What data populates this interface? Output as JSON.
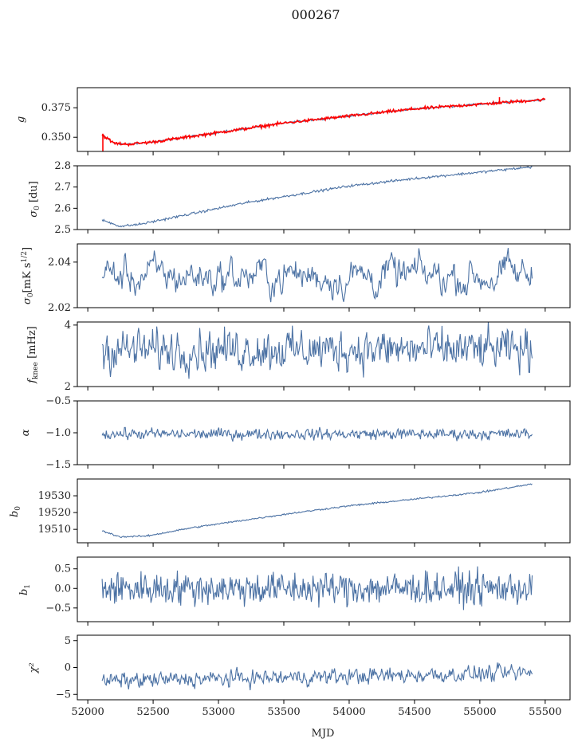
{
  "title": "000267",
  "xlabel": "MJD",
  "colors": {
    "series": "#4c72a4",
    "overlay": "#ff0000",
    "axis": "#000000"
  },
  "chart_data": [
    {
      "type": "line",
      "name": "g",
      "ylabel": "g",
      "xlim": [
        51920,
        55690
      ],
      "ylim": [
        0.338,
        0.392
      ],
      "yticks": [
        0.35,
        0.375
      ],
      "ytick_labels": [
        "0.350",
        "0.375"
      ],
      "xticks": [
        52000,
        52500,
        53000,
        53500,
        54000,
        54500,
        55000,
        55500
      ],
      "series": [
        {
          "name": "g",
          "color": "#4c72a4",
          "shape": "trend",
          "points": [
            [
              52110,
              0.352
            ],
            [
              52200,
              0.345
            ],
            [
              52300,
              0.344
            ],
            [
              52500,
              0.346
            ],
            [
              53000,
              0.354
            ],
            [
              53500,
              0.362
            ],
            [
              54000,
              0.368
            ],
            [
              54500,
              0.374
            ],
            [
              55000,
              0.378
            ],
            [
              55500,
              0.382
            ]
          ],
          "noise": 0.0006
        },
        {
          "name": "g (red)",
          "color": "#ff0000",
          "shape": "trend",
          "points": [
            [
              52110,
              0.352
            ],
            [
              52200,
              0.345
            ],
            [
              52300,
              0.344
            ],
            [
              52500,
              0.346
            ],
            [
              53000,
              0.354
            ],
            [
              53500,
              0.362
            ],
            [
              54000,
              0.368
            ],
            [
              54500,
              0.374
            ],
            [
              55000,
              0.378
            ],
            [
              55500,
              0.382
            ]
          ],
          "noise": 0.0009
        }
      ]
    },
    {
      "type": "line",
      "name": "sigma0_du",
      "xlim": [
        51920,
        55690
      ],
      "ylim": [
        2.5,
        2.8
      ],
      "yticks": [
        2.5,
        2.6,
        2.7,
        2.8
      ],
      "ytick_labels": [
        "2.5",
        "2.6",
        "2.7",
        "2.8"
      ],
      "xticks": [
        52000,
        52500,
        53000,
        53500,
        54000,
        54500,
        55000,
        55500
      ],
      "series": [
        {
          "name": "sigma0",
          "color": "#4c72a4",
          "shape": "trend",
          "points": [
            [
              52110,
              2.545
            ],
            [
              52250,
              2.515
            ],
            [
              52400,
              2.525
            ],
            [
              52800,
              2.575
            ],
            [
              53200,
              2.625
            ],
            [
              53600,
              2.665
            ],
            [
              54000,
              2.705
            ],
            [
              54500,
              2.74
            ],
            [
              55000,
              2.77
            ],
            [
              55400,
              2.795
            ]
          ],
          "noise": 0.004
        }
      ]
    },
    {
      "type": "line",
      "name": "sigma0_mks",
      "xlim": [
        51920,
        55690
      ],
      "ylim": [
        2.02,
        2.048
      ],
      "yticks": [
        2.02,
        2.04
      ],
      "ytick_labels": [
        "2.02",
        "2.04"
      ],
      "xticks": [
        52000,
        52500,
        53000,
        53500,
        54000,
        54500,
        55000,
        55500
      ],
      "series": [
        {
          "name": "sigma0_mks",
          "color": "#4c72a4",
          "shape": "noisy",
          "mean": 2.034,
          "amp": 0.006,
          "smooth": 0.75,
          "x_range": [
            52110,
            55400
          ]
        }
      ]
    },
    {
      "type": "line",
      "name": "fknee",
      "xlim": [
        51920,
        55690
      ],
      "ylim": [
        2,
        4.1
      ],
      "yticks": [
        2,
        4
      ],
      "ytick_labels": [
        "2",
        "4"
      ],
      "xticks": [
        52000,
        52500,
        53000,
        53500,
        54000,
        54500,
        55000,
        55500
      ],
      "series": [
        {
          "name": "fknee",
          "color": "#4c72a4",
          "shape": "noisy",
          "mean": 3.2,
          "amp": 0.45,
          "smooth": 0.3,
          "x_range": [
            52110,
            55400
          ]
        }
      ]
    },
    {
      "type": "line",
      "name": "alpha",
      "ylabel": "α",
      "xlim": [
        51920,
        55690
      ],
      "ylim": [
        -1.5,
        -0.5
      ],
      "yticks": [
        -1.5,
        -1.0,
        -0.5
      ],
      "ytick_labels": [
        "−1.5",
        "−1.0",
        "−0.5"
      ],
      "xticks": [
        52000,
        52500,
        53000,
        53500,
        54000,
        54500,
        55000,
        55500
      ],
      "series": [
        {
          "name": "alpha",
          "color": "#4c72a4",
          "shape": "noisy",
          "mean": -1.02,
          "amp": 0.06,
          "smooth": 0.2,
          "x_range": [
            52110,
            55400
          ]
        }
      ]
    },
    {
      "type": "line",
      "name": "b0",
      "xlim": [
        51920,
        55690
      ],
      "ylim": [
        19502,
        19540
      ],
      "yticks": [
        19510,
        19520,
        19530
      ],
      "ytick_labels": [
        "19510",
        "19520",
        "19530"
      ],
      "xticks": [
        52000,
        52500,
        53000,
        53500,
        54000,
        54500,
        55000,
        55500
      ],
      "series": [
        {
          "name": "b0",
          "color": "#4c72a4",
          "shape": "trend",
          "points": [
            [
              52110,
              19509
            ],
            [
              52250,
              19505.5
            ],
            [
              52450,
              19506
            ],
            [
              52800,
              19511
            ],
            [
              53200,
              19515.5
            ],
            [
              53600,
              19520
            ],
            [
              54000,
              19524
            ],
            [
              54500,
              19528
            ],
            [
              55000,
              19532
            ],
            [
              55400,
              19537
            ]
          ],
          "noise": 0.35
        }
      ]
    },
    {
      "type": "line",
      "name": "b1",
      "xlim": [
        51920,
        55690
      ],
      "ylim": [
        -0.85,
        0.8
      ],
      "yticks": [
        -0.5,
        0.0,
        0.5
      ],
      "ytick_labels": [
        "−0.5",
        "0.0",
        "0.5"
      ],
      "xticks": [
        52000,
        52500,
        53000,
        53500,
        54000,
        54500,
        55000,
        55500
      ],
      "series": [
        {
          "name": "b1",
          "color": "#4c72a4",
          "shape": "noisy",
          "mean": 0.0,
          "amp": 0.3,
          "smooth": 0.0,
          "x_range": [
            52110,
            55400
          ]
        }
      ]
    },
    {
      "type": "line",
      "name": "chi2",
      "ylabel": "χ²",
      "xlim": [
        51920,
        55690
      ],
      "ylim": [
        -6,
        6
      ],
      "yticks": [
        -5,
        0,
        5
      ],
      "ytick_labels": [
        "−5",
        "0",
        "5"
      ],
      "xticks": [
        52000,
        52500,
        53000,
        53500,
        54000,
        54500,
        55000,
        55500
      ],
      "xtick_labels": [
        "52000",
        "52500",
        "53000",
        "53500",
        "54000",
        "54500",
        "55000",
        "55500"
      ],
      "series": [
        {
          "name": "chi2",
          "color": "#4c72a4",
          "shape": "noisy",
          "mean": -2.5,
          "mean_end": -1.0,
          "amp": 1.0,
          "smooth": 0.3,
          "x_range": [
            52110,
            55400
          ]
        }
      ]
    }
  ]
}
